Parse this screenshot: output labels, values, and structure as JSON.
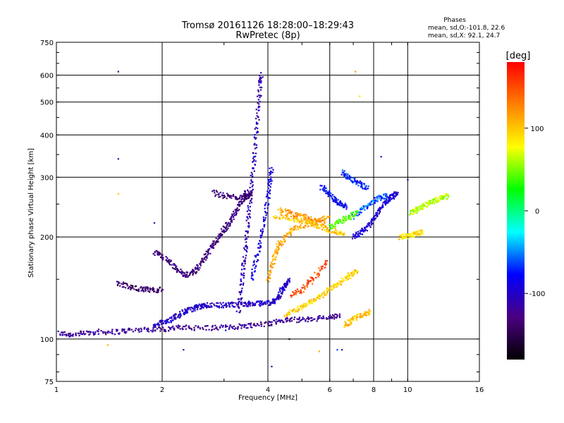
{
  "chart_data": {
    "type": "scatter",
    "title": "Tromsø 20161126  18:28:00–18:29:43",
    "subtitle": "RwPretec (8p)",
    "xlabel": "Frequency [MHz]",
    "ylabel": "Stationary phase Virtual Height [km]",
    "x_scale": "log",
    "y_scale": "log",
    "xlim": [
      1,
      16
    ],
    "ylim": [
      75,
      750
    ],
    "x_ticks": [
      1,
      2,
      4,
      6,
      8,
      10,
      16
    ],
    "y_ticks": [
      75,
      100,
      200,
      300,
      400,
      500,
      600,
      750
    ],
    "grid": true,
    "legend": {
      "title": "Phases",
      "lines": [
        "mean, sd,O:-101.8, 22.6",
        "mean, sd,X:  92.1, 24.7"
      ]
    },
    "colorbar": {
      "label": "[deg]",
      "range": [
        -180,
        180
      ],
      "ticks": [
        100,
        0,
        -100
      ],
      "colors": [
        "#000000",
        "#4b0082",
        "#0000ff",
        "#00ffff",
        "#00ff00",
        "#ffff00",
        "#ff8000",
        "#ff0000"
      ]
    },
    "traces": [
      {
        "phase": -120,
        "points": [
          [
            1.02,
            104
          ],
          [
            1.1,
            103
          ],
          [
            1.2,
            104
          ],
          [
            1.3,
            105
          ],
          [
            1.45,
            105
          ],
          [
            1.6,
            106
          ],
          [
            1.8,
            107
          ],
          [
            2.0,
            107
          ],
          [
            2.2,
            108
          ],
          [
            2.4,
            108
          ],
          [
            2.7,
            108
          ],
          [
            3.0,
            108
          ],
          [
            3.3,
            109
          ],
          [
            3.6,
            110
          ],
          [
            4.0,
            111
          ],
          [
            4.3,
            113
          ],
          [
            4.6,
            114
          ],
          [
            5.0,
            114
          ],
          [
            5.5,
            115
          ],
          [
            6.0,
            116
          ],
          [
            6.4,
            117
          ]
        ]
      },
      {
        "phase": -100,
        "points": [
          [
            1.9,
            109
          ],
          [
            2.0,
            112
          ],
          [
            2.1,
            114
          ],
          [
            2.2,
            117
          ],
          [
            2.3,
            120
          ],
          [
            2.4,
            122
          ],
          [
            2.5,
            124
          ],
          [
            2.6,
            125
          ],
          [
            2.7,
            126
          ],
          [
            2.9,
            126
          ],
          [
            3.1,
            126
          ],
          [
            3.3,
            127
          ],
          [
            3.5,
            127
          ],
          [
            3.7,
            127
          ],
          [
            3.9,
            128
          ],
          [
            4.1,
            128
          ],
          [
            4.2,
            130
          ],
          [
            4.3,
            134
          ],
          [
            4.4,
            140
          ],
          [
            4.5,
            145
          ],
          [
            4.6,
            149
          ]
        ]
      },
      {
        "phase": -140,
        "points": [
          [
            1.5,
            146
          ],
          [
            1.6,
            143
          ],
          [
            1.7,
            141
          ],
          [
            1.8,
            140
          ],
          [
            1.9,
            139
          ],
          [
            2.0,
            140
          ]
        ]
      },
      {
        "phase": -130,
        "points": [
          [
            1.9,
            180
          ],
          [
            2.0,
            175
          ],
          [
            2.1,
            168
          ],
          [
            2.2,
            160
          ],
          [
            2.3,
            155
          ],
          [
            2.4,
            155
          ],
          [
            2.5,
            160
          ],
          [
            2.6,
            170
          ],
          [
            2.7,
            180
          ],
          [
            2.8,
            190
          ],
          [
            2.9,
            200
          ],
          [
            3.0,
            210
          ],
          [
            3.1,
            220
          ],
          [
            3.2,
            232
          ],
          [
            3.3,
            245
          ],
          [
            3.4,
            258
          ],
          [
            3.5,
            275
          ]
        ]
      },
      {
        "phase": -110,
        "points": [
          [
            3.3,
            120
          ],
          [
            3.35,
            140
          ],
          [
            3.4,
            160
          ],
          [
            3.45,
            185
          ],
          [
            3.5,
            215
          ],
          [
            3.55,
            250
          ],
          [
            3.6,
            290
          ],
          [
            3.65,
            340
          ],
          [
            3.7,
            400
          ],
          [
            3.75,
            470
          ],
          [
            3.8,
            560
          ],
          [
            3.82,
            610
          ]
        ]
      },
      {
        "phase": -135,
        "points": [
          [
            2.8,
            270
          ],
          [
            3.0,
            265
          ],
          [
            3.2,
            262
          ],
          [
            3.4,
            262
          ],
          [
            3.5,
            265
          ],
          [
            3.6,
            270
          ]
        ]
      },
      {
        "phase": -90,
        "points": [
          [
            3.6,
            150
          ],
          [
            3.7,
            170
          ],
          [
            3.8,
            190
          ],
          [
            3.9,
            220
          ],
          [
            4.0,
            260
          ],
          [
            4.05,
            290
          ],
          [
            4.1,
            320
          ]
        ]
      },
      {
        "phase": 110,
        "points": [
          [
            4.0,
            150
          ],
          [
            4.1,
            165
          ],
          [
            4.2,
            180
          ],
          [
            4.3,
            190
          ],
          [
            4.5,
            200
          ],
          [
            4.7,
            210
          ],
          [
            5.0,
            215
          ],
          [
            5.3,
            220
          ],
          [
            5.6,
            225
          ],
          [
            6.0,
            230
          ]
        ]
      },
      {
        "phase": 95,
        "points": [
          [
            4.5,
            118
          ],
          [
            4.8,
            122
          ],
          [
            5.1,
            126
          ],
          [
            5.4,
            130
          ],
          [
            5.7,
            135
          ],
          [
            6.0,
            140
          ],
          [
            6.3,
            145
          ],
          [
            6.6,
            150
          ],
          [
            6.9,
            155
          ],
          [
            7.2,
            158
          ]
        ]
      },
      {
        "phase": 105,
        "points": [
          [
            6.6,
            110
          ],
          [
            6.9,
            113
          ],
          [
            7.2,
            116
          ],
          [
            7.5,
            118
          ],
          [
            7.8,
            121
          ]
        ]
      },
      {
        "phase": 100,
        "points": [
          [
            4.2,
            230
          ],
          [
            4.5,
            228
          ],
          [
            4.8,
            225
          ],
          [
            5.1,
            222
          ],
          [
            5.4,
            218
          ],
          [
            5.7,
            214
          ],
          [
            6.0,
            210
          ],
          [
            6.3,
            207
          ],
          [
            6.6,
            205
          ]
        ]
      },
      {
        "phase": 120,
        "points": [
          [
            4.3,
            240
          ],
          [
            4.6,
            236
          ],
          [
            4.9,
            232
          ],
          [
            5.2,
            228
          ],
          [
            5.5,
            224
          ],
          [
            5.8,
            220
          ]
        ]
      },
      {
        "phase": -80,
        "points": [
          [
            5.7,
            280
          ],
          [
            5.9,
            270
          ],
          [
            6.1,
            262
          ],
          [
            6.3,
            255
          ],
          [
            6.5,
            250
          ],
          [
            6.7,
            245
          ]
        ]
      },
      {
        "phase": -95,
        "points": [
          [
            7.0,
            200
          ],
          [
            7.3,
            205
          ],
          [
            7.6,
            212
          ],
          [
            7.9,
            222
          ],
          [
            8.2,
            235
          ],
          [
            8.5,
            248
          ],
          [
            8.8,
            258
          ],
          [
            9.1,
            265
          ],
          [
            9.3,
            268
          ]
        ]
      },
      {
        "phase": 90,
        "points": [
          [
            9.5,
            200
          ],
          [
            9.9,
            201
          ],
          [
            10.3,
            203
          ],
          [
            10.7,
            205
          ],
          [
            11.0,
            207
          ]
        ]
      },
      {
        "phase": 60,
        "points": [
          [
            10.2,
            235
          ],
          [
            10.6,
            240
          ],
          [
            11.0,
            245
          ],
          [
            11.4,
            250
          ],
          [
            11.8,
            255
          ],
          [
            12.2,
            258
          ],
          [
            12.6,
            262
          ],
          [
            13.0,
            265
          ]
        ]
      },
      {
        "phase": -60,
        "points": [
          [
            7.0,
            230
          ],
          [
            7.4,
            240
          ],
          [
            7.8,
            250
          ],
          [
            8.1,
            258
          ],
          [
            8.4,
            262
          ],
          [
            8.7,
            265
          ]
        ]
      },
      {
        "phase": 40,
        "points": [
          [
            6.0,
            215
          ],
          [
            6.3,
            220
          ],
          [
            6.6,
            225
          ],
          [
            6.9,
            230
          ],
          [
            7.2,
            238
          ]
        ]
      },
      {
        "phase": 150,
        "points": [
          [
            4.7,
            135
          ],
          [
            5.0,
            140
          ],
          [
            5.3,
            148
          ],
          [
            5.6,
            158
          ],
          [
            5.9,
            170
          ]
        ]
      },
      {
        "phase": -70,
        "points": [
          [
            6.5,
            310
          ],
          [
            6.8,
            300
          ],
          [
            7.1,
            292
          ],
          [
            7.4,
            285
          ],
          [
            7.7,
            278
          ]
        ]
      }
    ],
    "isolated_points": [
      {
        "x": 1.5,
        "y": 615,
        "phase": -110
      },
      {
        "x": 1.5,
        "y": 340,
        "phase": -110
      },
      {
        "x": 7.1,
        "y": 615,
        "phase": 120
      },
      {
        "x": 7.3,
        "y": 520,
        "phase": 90
      },
      {
        "x": 2.3,
        "y": 93,
        "phase": -110
      },
      {
        "x": 1.4,
        "y": 96,
        "phase": 110
      },
      {
        "x": 4.1,
        "y": 83,
        "phase": -110
      },
      {
        "x": 5.6,
        "y": 92,
        "phase": 110
      },
      {
        "x": 6.3,
        "y": 93,
        "phase": -60
      },
      {
        "x": 6.5,
        "y": 93,
        "phase": -110
      },
      {
        "x": 10.0,
        "y": 295,
        "phase": -110
      },
      {
        "x": 8.4,
        "y": 345,
        "phase": -100
      },
      {
        "x": 1.9,
        "y": 220,
        "phase": -120
      },
      {
        "x": 1.5,
        "y": 268,
        "phase": 100
      },
      {
        "x": 4.6,
        "y": 100,
        "phase": -170
      }
    ]
  }
}
